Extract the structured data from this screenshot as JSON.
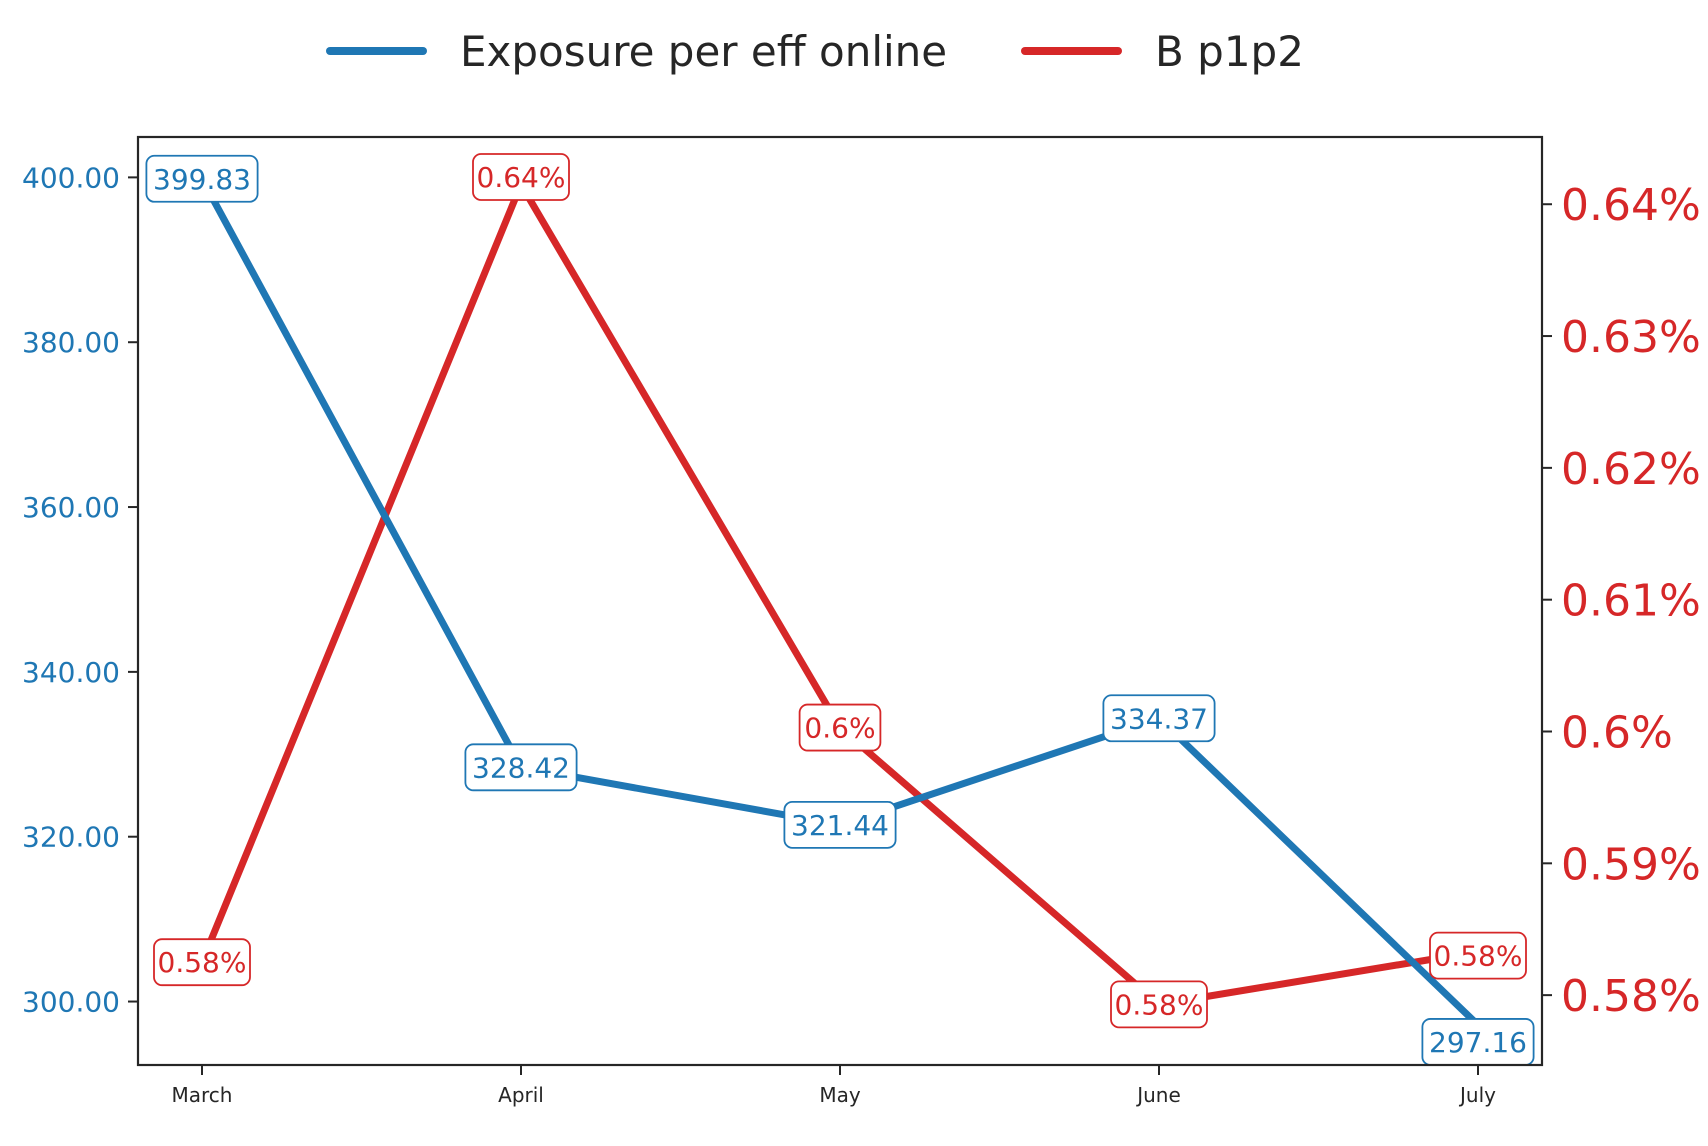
{
  "chart_data": {
    "type": "line",
    "categories": [
      "March",
      "April",
      "May",
      "June",
      "July"
    ],
    "series": [
      {
        "name": "Exposure per eff online",
        "axis": "left",
        "color": "#1f77b4",
        "values": [
          399.83,
          328.42,
          321.44,
          334.37,
          297.16
        ],
        "labels": [
          "399.83",
          "328.42",
          "321.44",
          "334.37",
          "297.16"
        ]
      },
      {
        "name": "B p1p2",
        "axis": "right",
        "color": "#d62728",
        "values": [
          0.5825,
          0.6415,
          0.6003,
          0.5793,
          0.5833
        ],
        "labels": [
          "0.58%",
          "0.64%",
          "0.6%",
          "0.58%",
          "0.58%"
        ]
      }
    ],
    "y_left": {
      "ticks": [
        300,
        320,
        340,
        360,
        380,
        400
      ],
      "tick_labels": [
        "300.00",
        "320.00",
        "340.00",
        "360.00",
        "380.00",
        "400.00"
      ],
      "ylim": [
        292.3,
        404.9
      ],
      "color": "#1f77b4"
    },
    "y_right": {
      "ticks": [
        0.58,
        0.59,
        0.6,
        0.61,
        0.62,
        0.63,
        0.64
      ],
      "tick_labels": [
        "0.58%",
        "0.59%",
        "0.6%",
        "0.61%",
        "0.62%",
        "0.63%",
        "0.64%"
      ],
      "ylim": [
        0.5747,
        0.6451
      ],
      "color": "#d62728"
    },
    "legend_placement": "top-center",
    "grid": false
  }
}
